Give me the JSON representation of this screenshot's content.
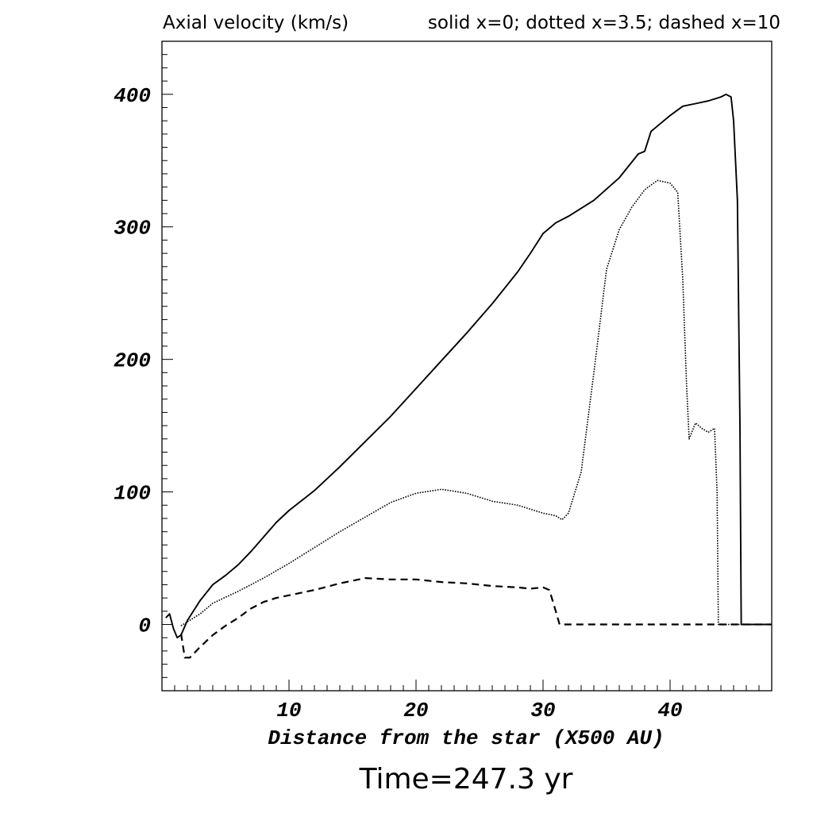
{
  "chart_data": {
    "type": "line",
    "title": "Axial velocity (km/s)",
    "legend_text": "solid x=0; dotted x=3.5; dashed x=10",
    "xlabel": "Distance from the star (X500 AU)",
    "ylabel": "",
    "caption": "Time=247.3 yr",
    "xlim": [
      0,
      48
    ],
    "ylim": [
      -50,
      440
    ],
    "x_ticks": [
      10,
      20,
      30,
      40
    ],
    "y_ticks": [
      0,
      100,
      200,
      300,
      400
    ],
    "x_tick_labels": [
      "10",
      "20",
      "30",
      "40"
    ],
    "y_tick_labels": [
      "0",
      "100",
      "200",
      "300",
      "400"
    ],
    "grid": false,
    "series": [
      {
        "name": "solid x=0",
        "style": "solid",
        "color": "#000000",
        "points": [
          [
            0.3,
            5
          ],
          [
            0.6,
            8
          ],
          [
            0.9,
            -3
          ],
          [
            1.2,
            -10
          ],
          [
            1.5,
            -8
          ],
          [
            2,
            3
          ],
          [
            3,
            18
          ],
          [
            4,
            30
          ],
          [
            5,
            37
          ],
          [
            6,
            45
          ],
          [
            7,
            55
          ],
          [
            8,
            66
          ],
          [
            9,
            77
          ],
          [
            10,
            86
          ],
          [
            12,
            101
          ],
          [
            14,
            119
          ],
          [
            16,
            138
          ],
          [
            18,
            157
          ],
          [
            20,
            178
          ],
          [
            22,
            199
          ],
          [
            24,
            220
          ],
          [
            26,
            242
          ],
          [
            28,
            266
          ],
          [
            29,
            280
          ],
          [
            30,
            295
          ],
          [
            31,
            303
          ],
          [
            32,
            308
          ],
          [
            34,
            320
          ],
          [
            36,
            337
          ],
          [
            37.5,
            355
          ],
          [
            38,
            357
          ],
          [
            38.5,
            372
          ],
          [
            39,
            376
          ],
          [
            40,
            384
          ],
          [
            41,
            391
          ],
          [
            42,
            393
          ],
          [
            43,
            395
          ],
          [
            44,
            398
          ],
          [
            44.4,
            400
          ],
          [
            44.8,
            398
          ],
          [
            45,
            380
          ],
          [
            45.3,
            320
          ],
          [
            45.5,
            150
          ],
          [
            45.6,
            0
          ],
          [
            48,
            0
          ]
        ]
      },
      {
        "name": "dotted x=3.5",
        "style": "dotted",
        "color": "#000000",
        "points": [
          [
            1.5,
            -1
          ],
          [
            2,
            2
          ],
          [
            3,
            8
          ],
          [
            4,
            16
          ],
          [
            6,
            25
          ],
          [
            8,
            35
          ],
          [
            10,
            46
          ],
          [
            12,
            58
          ],
          [
            14,
            70
          ],
          [
            16,
            81
          ],
          [
            18,
            92
          ],
          [
            20,
            99
          ],
          [
            22,
            102
          ],
          [
            24,
            99
          ],
          [
            26,
            93
          ],
          [
            28,
            90
          ],
          [
            30,
            84
          ],
          [
            31,
            82
          ],
          [
            31.5,
            79
          ],
          [
            32,
            84
          ],
          [
            33,
            115
          ],
          [
            34,
            190
          ],
          [
            35,
            268
          ],
          [
            36,
            298
          ],
          [
            37,
            315
          ],
          [
            38,
            328
          ],
          [
            39,
            335
          ],
          [
            40,
            333
          ],
          [
            40.6,
            326
          ],
          [
            41,
            260
          ],
          [
            41.3,
            180
          ],
          [
            41.5,
            140
          ],
          [
            42,
            152
          ],
          [
            42.5,
            148
          ],
          [
            43,
            145
          ],
          [
            43.5,
            148
          ],
          [
            43.7,
            100
          ],
          [
            43.8,
            0
          ],
          [
            48,
            0
          ]
        ]
      },
      {
        "name": "dashed x=10",
        "style": "dashed",
        "color": "#000000",
        "points": [
          [
            1.5,
            -7
          ],
          [
            1.8,
            -25
          ],
          [
            2.2,
            -25
          ],
          [
            3,
            -17
          ],
          [
            4,
            -8
          ],
          [
            5,
            -1
          ],
          [
            6,
            5
          ],
          [
            7,
            12
          ],
          [
            8,
            17
          ],
          [
            9,
            20
          ],
          [
            10,
            22
          ],
          [
            12,
            26
          ],
          [
            14,
            31
          ],
          [
            16,
            35
          ],
          [
            18,
            34
          ],
          [
            20,
            34
          ],
          [
            22,
            32
          ],
          [
            24,
            31
          ],
          [
            26,
            29
          ],
          [
            28,
            28
          ],
          [
            29,
            27
          ],
          [
            30,
            28
          ],
          [
            30.5,
            26
          ],
          [
            31,
            10
          ],
          [
            31.3,
            0
          ],
          [
            48,
            0
          ]
        ]
      }
    ]
  }
}
